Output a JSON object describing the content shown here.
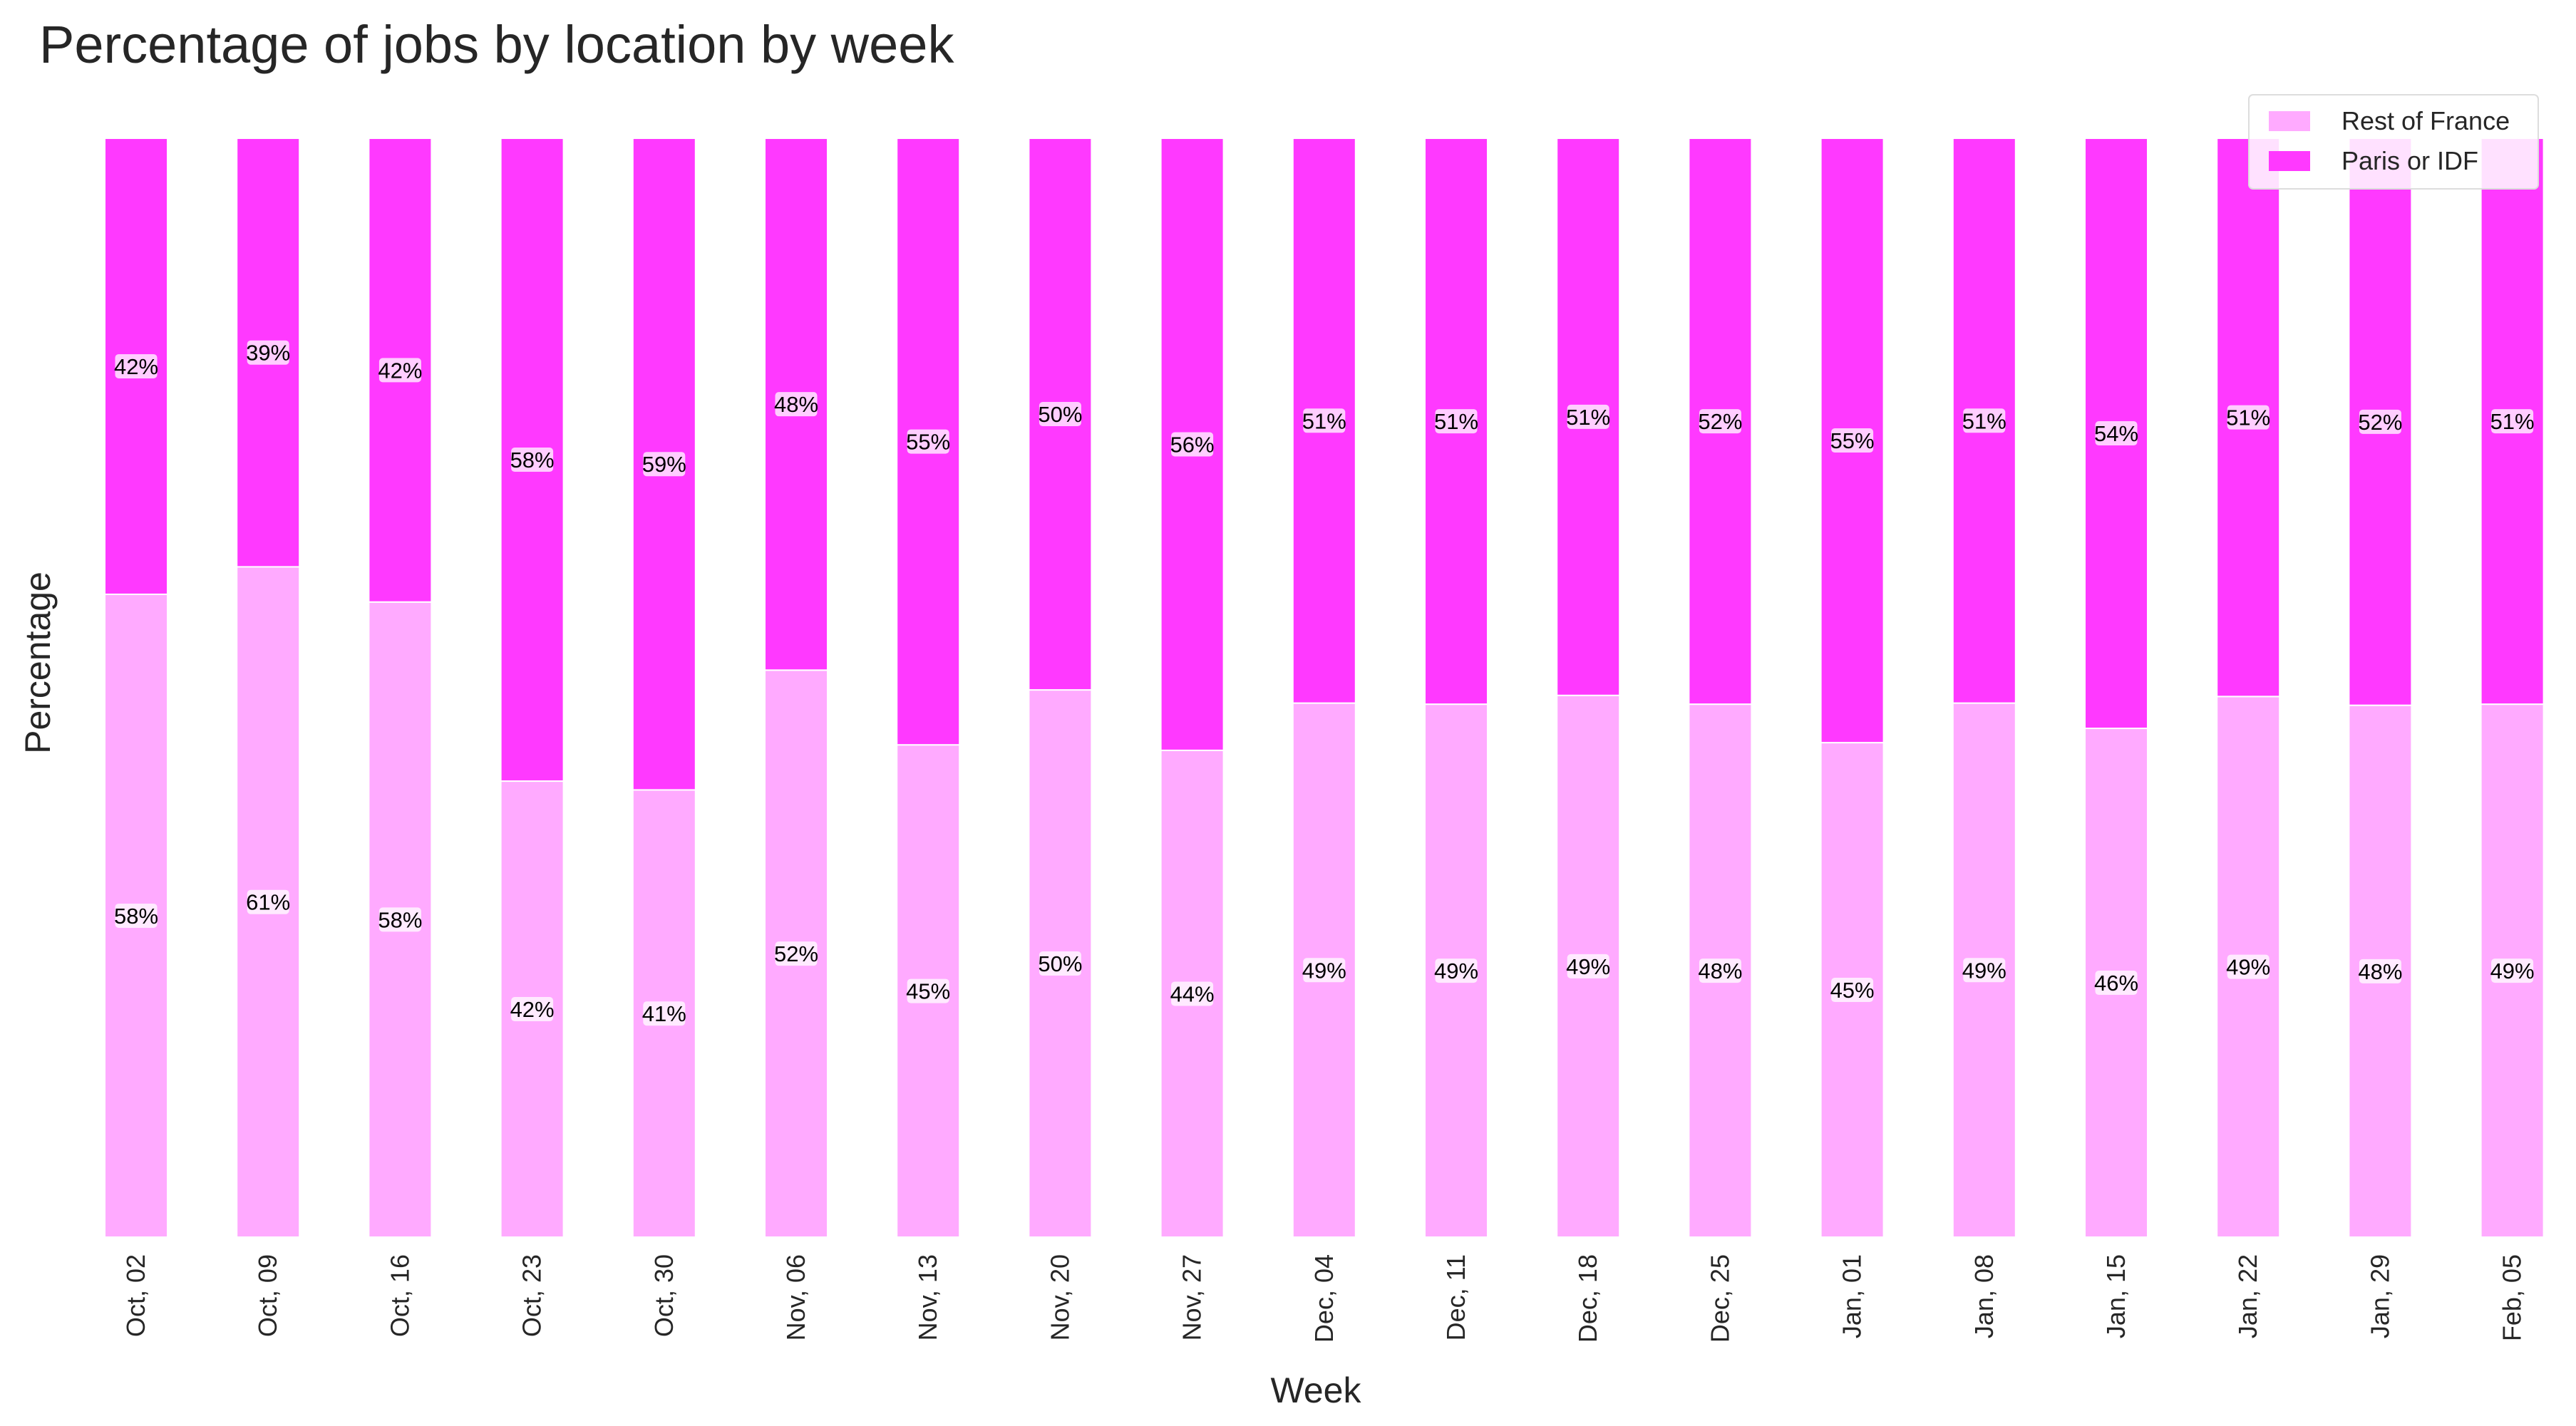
{
  "chart_data": {
    "type": "bar",
    "stacked": true,
    "title": "Percentage of jobs by location by week",
    "xlabel": "Week",
    "ylabel": "Percentage",
    "ylim": [
      0,
      100
    ],
    "grid": false,
    "legend_position": "top-right",
    "categories": [
      "Oct, 02",
      "Oct, 09",
      "Oct, 16",
      "Oct, 23",
      "Oct, 30",
      "Nov, 06",
      "Nov, 13",
      "Nov, 20",
      "Nov, 27",
      "Dec, 04",
      "Dec, 11",
      "Dec, 18",
      "Dec, 25",
      "Jan, 01",
      "Jan, 08",
      "Jan, 15",
      "Jan, 22",
      "Jan, 29",
      "Feb, 05"
    ],
    "series": [
      {
        "name": "Rest of France",
        "color": "#ffaaff",
        "values": [
          58.5,
          61,
          57.8,
          41.5,
          40.7,
          51.6,
          44.8,
          49.8,
          44.3,
          48.6,
          48.5,
          49.3,
          48.5,
          45,
          48.6,
          46.3,
          49.2,
          48.4,
          48.5
        ],
        "labels": [
          "58%",
          "61%",
          "58%",
          "42%",
          "41%",
          "52%",
          "45%",
          "50%",
          "44%",
          "49%",
          "49%",
          "49%",
          "48%",
          "45%",
          "49%",
          "46%",
          "49%",
          "48%",
          "49%"
        ]
      },
      {
        "name": "Paris or IDF",
        "color": "#ff39ff",
        "values": [
          41.5,
          39,
          42.2,
          58.5,
          59.3,
          48.4,
          55.2,
          50.2,
          55.7,
          51.4,
          51.5,
          50.7,
          51.5,
          55,
          51.4,
          53.7,
          50.8,
          51.6,
          51.5
        ],
        "labels": [
          "42%",
          "39%",
          "42%",
          "58%",
          "59%",
          "48%",
          "55%",
          "50%",
          "56%",
          "51%",
          "51%",
          "51%",
          "52%",
          "55%",
          "51%",
          "54%",
          "51%",
          "52%",
          "51%"
        ]
      }
    ]
  }
}
